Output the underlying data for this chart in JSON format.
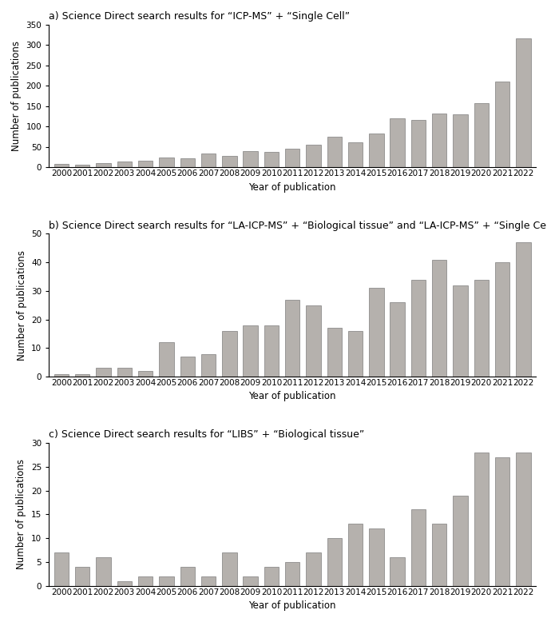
{
  "years": [
    2000,
    2001,
    2002,
    2003,
    2004,
    2005,
    2006,
    2007,
    2008,
    2009,
    2010,
    2011,
    2012,
    2013,
    2014,
    2015,
    2016,
    2017,
    2018,
    2019,
    2020,
    2021,
    2022
  ],
  "chart_a": {
    "title": "a) Science Direct search results for “ICP-MS” + “Single Cell”",
    "values": [
      8,
      7,
      11,
      14,
      17,
      25,
      22,
      35,
      29,
      41,
      39,
      46,
      55,
      76,
      61,
      83,
      121,
      116,
      133,
      131,
      158,
      210,
      317
    ],
    "ylim": [
      0,
      350
    ],
    "yticks": [
      0,
      50,
      100,
      150,
      200,
      250,
      300,
      350
    ]
  },
  "chart_b": {
    "title": "b) Science Direct search results for “LA-ICP-MS” + “Biological tissue” and “LA-ICP-MS” + “Single Cell”",
    "values": [
      1,
      1,
      3,
      3,
      2,
      12,
      7,
      8,
      16,
      18,
      18,
      27,
      25,
      17,
      16,
      31,
      26,
      34,
      41,
      32,
      34,
      40,
      47
    ],
    "ylim": [
      0,
      50
    ],
    "yticks": [
      0,
      10,
      20,
      30,
      40,
      50
    ]
  },
  "chart_c": {
    "title": "c) Science Direct search results for “LIBS” + “Biological tissue”",
    "values": [
      7,
      4,
      6,
      1,
      2,
      2,
      4,
      2,
      7,
      2,
      4,
      5,
      7,
      10,
      13,
      12,
      6,
      16,
      13,
      19,
      28,
      27,
      28
    ],
    "ylim": [
      0,
      30
    ],
    "yticks": [
      0,
      5,
      10,
      15,
      20,
      25,
      30
    ]
  },
  "bar_color": "#b5b1ad",
  "bar_edgecolor": "#666666",
  "xlabel": "Year of publication",
  "ylabel": "Number of publications",
  "title_fontsize": 9.0,
  "label_fontsize": 8.5,
  "tick_fontsize": 7.5,
  "bar_width": 0.7
}
